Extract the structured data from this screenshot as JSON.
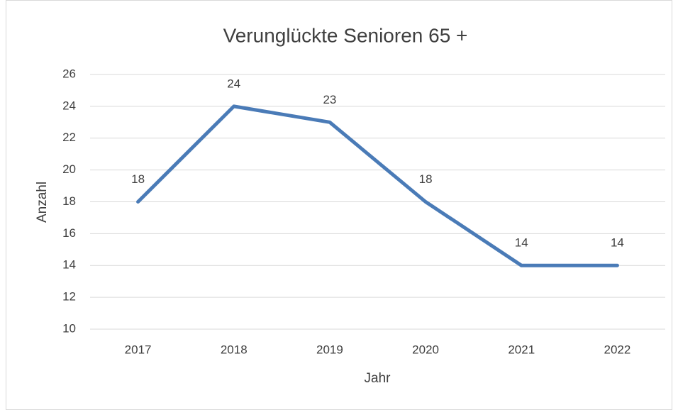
{
  "chart_data": {
    "type": "line",
    "title": "Verunglückte Senioren 65 +",
    "x_label": "Jahr",
    "y_label": "Anzahl",
    "categories": [
      "2017",
      "2018",
      "2019",
      "2020",
      "2021",
      "2022"
    ],
    "values": [
      18,
      24,
      23,
      18,
      14,
      14
    ],
    "color": "#4a7bb7",
    "ylim": [
      10,
      26
    ],
    "yticks": [
      10,
      12,
      14,
      16,
      18,
      20,
      22,
      24,
      26
    ],
    "grid": true
  }
}
